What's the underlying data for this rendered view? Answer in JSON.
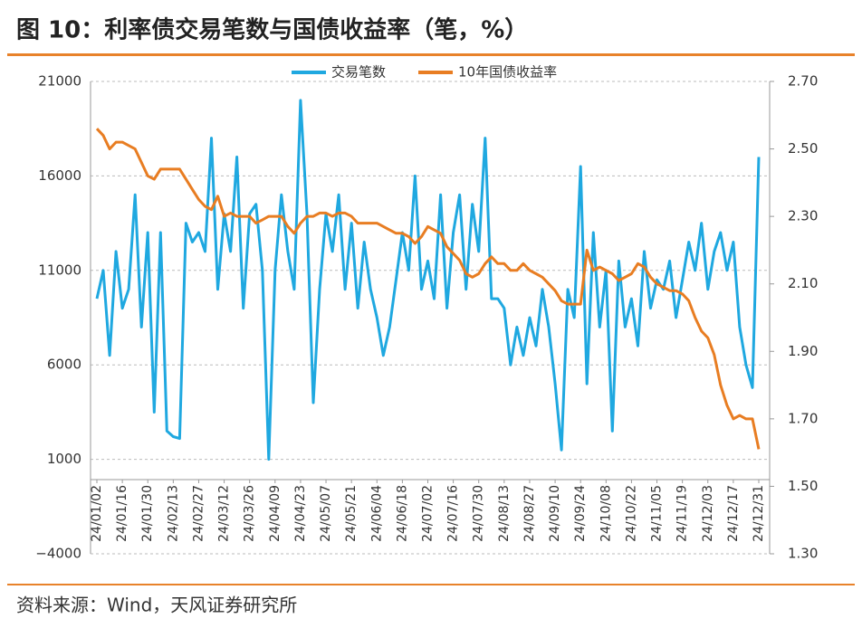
{
  "chart_data": {
    "type": "line",
    "title": "图 10：利率债交易笔数与国债收益率（笔，%）",
    "source": "资料来源：Wind，天风证券研究所",
    "categories": [
      "24/01/02",
      null,
      null,
      null,
      "24/01/16",
      null,
      null,
      null,
      "24/01/30",
      null,
      null,
      null,
      "24/02/13",
      null,
      null,
      null,
      "24/02/27",
      null,
      null,
      null,
      "24/03/12",
      null,
      null,
      null,
      "24/03/26",
      null,
      null,
      null,
      "24/04/09",
      null,
      null,
      null,
      "24/04/23",
      null,
      null,
      null,
      "24/05/07",
      null,
      null,
      null,
      "24/05/21",
      null,
      null,
      null,
      "24/06/04",
      null,
      null,
      null,
      "24/06/18",
      null,
      null,
      null,
      "24/07/02",
      null,
      null,
      null,
      "24/07/16",
      null,
      null,
      null,
      "24/07/30",
      null,
      null,
      null,
      "24/08/13",
      null,
      null,
      null,
      "24/08/27",
      null,
      null,
      null,
      "24/09/10",
      null,
      null,
      null,
      "24/09/24",
      null,
      null,
      null,
      "24/10/08",
      null,
      null,
      null,
      "24/10/22",
      null,
      null,
      null,
      "24/11/05",
      null,
      null,
      null,
      "24/11/19",
      null,
      null,
      null,
      "24/12/03",
      null,
      null,
      null,
      "24/12/17",
      null,
      null,
      null,
      "24/12/31"
    ],
    "series": [
      {
        "name": "交易笔数",
        "color": "#1fa8e0",
        "axis": "y",
        "values": [
          9500,
          11000,
          6500,
          12000,
          9000,
          10000,
          15000,
          8000,
          13000,
          3500,
          13000,
          2500,
          2200,
          2100,
          13500,
          12500,
          13000,
          12000,
          18000,
          10000,
          14000,
          12000,
          17000,
          9000,
          14000,
          14500,
          11000,
          1000,
          11000,
          15000,
          12000,
          10000,
          20000,
          14000,
          4000,
          10000,
          14000,
          12000,
          15000,
          10000,
          13500,
          9000,
          12500,
          10000,
          8500,
          6500,
          8000,
          10500,
          13000,
          11000,
          16000,
          10000,
          11500,
          9500,
          15000,
          9000,
          13000,
          15000,
          10000,
          14500,
          12000,
          18000,
          9500,
          9500,
          9000,
          6000,
          8000,
          6500,
          8500,
          7000,
          10000,
          8000,
          5000,
          1500,
          10000,
          8500,
          16500,
          5000,
          13000,
          8000,
          11000,
          2500,
          11500,
          8000,
          9500,
          7000,
          12000,
          9000,
          10500,
          10000,
          11500,
          8500,
          10500,
          12500,
          11000,
          13500,
          10000,
          12000,
          13000,
          11000,
          12500,
          8000,
          6000,
          4800,
          17000
        ]
      },
      {
        "name": "10年国债收益率",
        "color": "#e87d22",
        "axis": "y2",
        "values": [
          2.56,
          2.54,
          2.5,
          2.52,
          2.52,
          2.51,
          2.5,
          2.46,
          2.42,
          2.41,
          2.44,
          2.44,
          2.44,
          2.44,
          2.41,
          2.38,
          2.35,
          2.33,
          2.32,
          2.36,
          2.3,
          2.31,
          2.3,
          2.3,
          2.3,
          2.28,
          2.29,
          2.3,
          2.3,
          2.3,
          2.27,
          2.25,
          2.28,
          2.3,
          2.3,
          2.31,
          2.31,
          2.3,
          2.31,
          2.31,
          2.3,
          2.28,
          2.28,
          2.28,
          2.28,
          2.27,
          2.26,
          2.25,
          2.25,
          2.24,
          2.22,
          2.24,
          2.27,
          2.26,
          2.25,
          2.21,
          2.19,
          2.17,
          2.13,
          2.12,
          2.13,
          2.16,
          2.18,
          2.16,
          2.16,
          2.14,
          2.14,
          2.16,
          2.14,
          2.13,
          2.12,
          2.1,
          2.08,
          2.05,
          2.04,
          2.04,
          2.04,
          2.2,
          2.14,
          2.15,
          2.14,
          2.13,
          2.11,
          2.12,
          2.13,
          2.16,
          2.15,
          2.12,
          2.1,
          2.09,
          2.08,
          2.08,
          2.07,
          2.05,
          2,
          1.96,
          1.94,
          1.89,
          1.8,
          1.74,
          1.7,
          1.71,
          1.7,
          1.7,
          1.61
        ]
      }
    ],
    "ylim": [
      -4000,
      21000
    ],
    "yticks": [
      {
        "value": -4000,
        "label": "−4000"
      },
      1000,
      6000,
      11000,
      16000,
      21000
    ],
    "y2lim": [
      1.3,
      2.7
    ],
    "y2ticks": [
      {
        "value": 1.3,
        "label": "1.30"
      },
      {
        "value": 1.5,
        "label": "1.50"
      },
      {
        "value": 1.7,
        "label": "1.70"
      },
      {
        "value": 1.9,
        "label": "1.90"
      },
      {
        "value": 2.1,
        "label": "2.10"
      },
      {
        "value": 2.3,
        "label": "2.30"
      },
      {
        "value": 2.5,
        "label": "2.50"
      },
      {
        "value": 2.7,
        "label": "2.70"
      }
    ],
    "grid": true,
    "legend": "top"
  }
}
